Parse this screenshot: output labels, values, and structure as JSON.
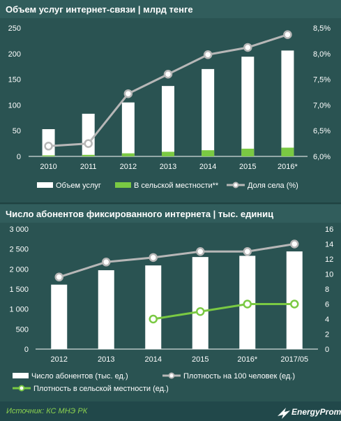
{
  "colors": {
    "background": "#2a5352",
    "bar": "#ffffff",
    "green": "#7ac943",
    "line_gray": "#b7b7b7",
    "source_text": "#8bd14f"
  },
  "chart_data": [
    {
      "type": "bar",
      "title": "Объем услуг интернет-связи | млрд тенге",
      "categories": [
        "2010",
        "2011",
        "2012",
        "2013",
        "2014",
        "2015",
        "2016*"
      ],
      "yticks_left": [
        "0",
        "50",
        "100",
        "150",
        "200",
        "250"
      ],
      "yticks_right": [
        "6,0%",
        "6,5%",
        "7,0%",
        "7,5%",
        "8,0%",
        "8,5%"
      ],
      "ylim": [
        0,
        250
      ],
      "y2lim": [
        6.0,
        8.5
      ],
      "series": [
        {
          "name": "Объем услуг",
          "kind": "bar",
          "values": [
            53,
            83,
            105,
            137,
            170,
            194,
            206
          ]
        },
        {
          "name": "В сельской местности**",
          "kind": "bar",
          "values": [
            2,
            3,
            6,
            9,
            12,
            15,
            17
          ]
        },
        {
          "name": "Доля села (%)",
          "kind": "line",
          "axis": "right",
          "values": [
            6.2,
            6.25,
            7.22,
            7.6,
            7.98,
            8.12,
            8.37
          ]
        }
      ],
      "legend_position": "bottom",
      "grid": false
    },
    {
      "type": "bar",
      "title": "Число абонентов фиксированного интернета | тыс. единиц",
      "categories": [
        "2012",
        "2013",
        "2014",
        "2015",
        "2016*",
        "2017/05"
      ],
      "yticks_left": [
        "0",
        "500",
        "1 000",
        "1 500",
        "2 000",
        "2 500",
        "3 000"
      ],
      "yticks_right": [
        "0",
        "2",
        "4",
        "6",
        "8",
        "10",
        "12",
        "14",
        "16"
      ],
      "ylim": [
        0,
        3000
      ],
      "y2lim": [
        0,
        16
      ],
      "series": [
        {
          "name": "Число абонентов (тыс. ед.)",
          "kind": "bar",
          "values": [
            1610,
            1970,
            2090,
            2300,
            2330,
            2440
          ]
        },
        {
          "name": "Плотность на 100 человек (ед.)",
          "kind": "line",
          "axis": "right",
          "values": [
            9.6,
            11.6,
            12.2,
            13.0,
            13.0,
            14.0
          ]
        },
        {
          "name": "Плотность в сельской местности (ед.)",
          "kind": "line",
          "axis": "right",
          "values": [
            null,
            null,
            4.0,
            5.0,
            6.0,
            6.0
          ]
        }
      ],
      "legend_position": "bottom",
      "grid": false
    }
  ],
  "footer": {
    "source": "Источник: КС МНЭ РК",
    "brand": "EnergyProm",
    "brand_icon": "energyprom-logo-icon"
  }
}
